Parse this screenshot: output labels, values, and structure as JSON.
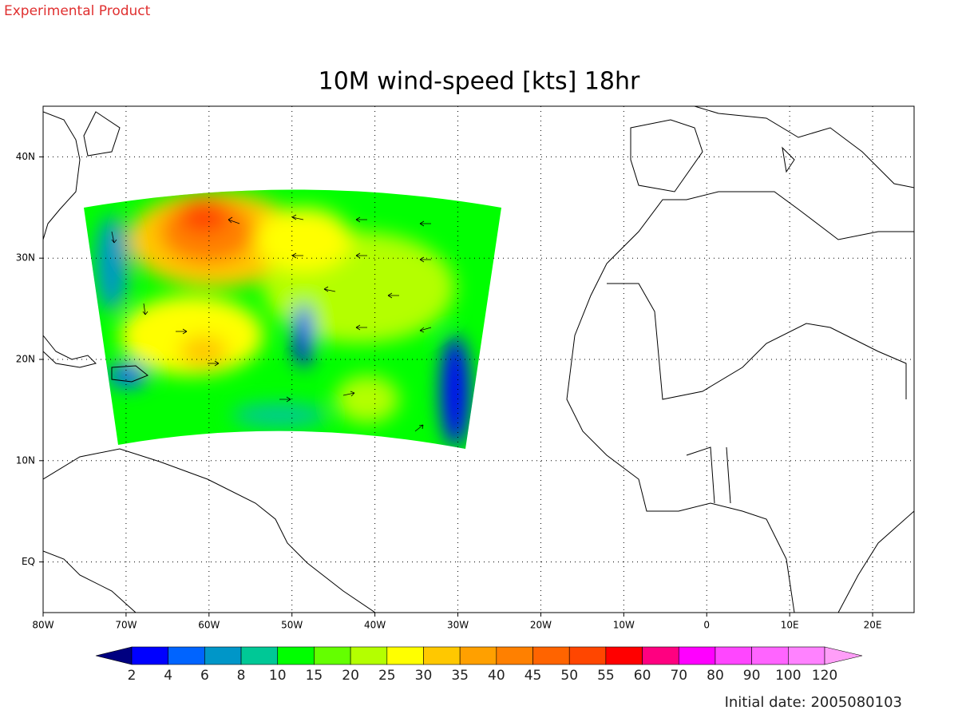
{
  "header": {
    "label": "Experimental Product"
  },
  "chart_data": {
    "type": "map",
    "title": "10M wind-speed [kts] 18hr",
    "xlim": [
      -80,
      25
    ],
    "ylim": [
      -5,
      45
    ],
    "xticks": [
      {
        "value": -80,
        "label": "80W"
      },
      {
        "value": -70,
        "label": "70W"
      },
      {
        "value": -60,
        "label": "60W"
      },
      {
        "value": -50,
        "label": "50W"
      },
      {
        "value": -40,
        "label": "40W"
      },
      {
        "value": -30,
        "label": "30W"
      },
      {
        "value": -20,
        "label": "20W"
      },
      {
        "value": -10,
        "label": "10W"
      },
      {
        "value": 0,
        "label": "0"
      },
      {
        "value": 10,
        "label": "10E"
      },
      {
        "value": 20,
        "label": "20E"
      }
    ],
    "yticks": [
      {
        "value": 0,
        "label": "EQ"
      },
      {
        "value": 10,
        "label": "10N"
      },
      {
        "value": 20,
        "label": "20N"
      },
      {
        "value": 30,
        "label": "30N"
      },
      {
        "value": 40,
        "label": "40N"
      }
    ],
    "grid": true,
    "colorbar": {
      "levels": [
        2,
        4,
        6,
        8,
        10,
        15,
        20,
        25,
        30,
        35,
        40,
        45,
        50,
        55,
        60,
        70,
        80,
        90,
        100,
        120
      ],
      "colors": [
        "#000080",
        "#0000ff",
        "#0064ff",
        "#0096c8",
        "#00c896",
        "#00ff00",
        "#64ff00",
        "#b4ff00",
        "#ffff00",
        "#ffc800",
        "#ffa000",
        "#ff8000",
        "#ff6400",
        "#ff4600",
        "#ff0000",
        "#ff0080",
        "#ff00ff",
        "#ff46ff",
        "#ff64ff",
        "#ff82ff",
        "#ff9ef8"
      ]
    },
    "footnote": "Initial date: 2005080103"
  }
}
